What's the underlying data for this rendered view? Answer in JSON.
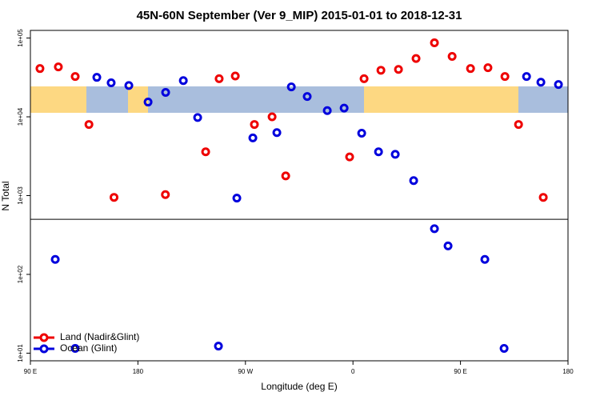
{
  "chart_data": {
    "type": "scatter",
    "title": "45N-60N September (Ver 9_MIP)   2015-01-01 to 2018-12-31",
    "x_label": "Longitude (deg E)",
    "y_label": "N Total",
    "xlim": [
      -270,
      180
    ],
    "xticks": [
      {
        "value": -270,
        "label": "90 E"
      },
      {
        "value": -180,
        "label": "180"
      },
      {
        "value": -90,
        "label": "90 W"
      },
      0,
      {
        "value": 90,
        "label": "90 E"
      },
      180
    ],
    "ylim": [
      8,
      125000
    ],
    "log_y": true,
    "yticks": [
      {
        "value": 10,
        "label": "1e+01"
      },
      {
        "value": 100,
        "label": "1e+02"
      },
      {
        "value": 1000,
        "label": "1e+03"
      },
      {
        "value": 10000,
        "label": "1e+04"
      },
      {
        "value": 100000,
        "label": "1e+05"
      }
    ],
    "reference_line": 500,
    "legend": "bottom-left",
    "series": [
      {
        "name": "Land (Nadir&Glint)",
        "color": "#ee0000",
        "x": [
          -262,
          -246.6,
          -232.5,
          -221,
          -200,
          -157,
          -123.3,
          -112,
          -98.5,
          -82.5,
          -67.7,
          -56.3,
          -2.8,
          9.3,
          23.4,
          38.1,
          52.8,
          68.2,
          83,
          98.4,
          113,
          127.2,
          138.6,
          159.3
        ],
        "values": [
          41000,
          43000,
          32500,
          8000,
          950,
          1030,
          3600,
          30500,
          33000,
          8000,
          10000,
          1780,
          3100,
          30500,
          39000,
          40000,
          55000,
          87000,
          58500,
          41000,
          42000,
          32500,
          8000,
          950
        ]
      },
      {
        "name": "Ocean (Glint)",
        "color": "#0000dd",
        "x": [
          -249.2,
          -232.5,
          -214.4,
          -202.4,
          -187.6,
          -171.5,
          -156.8,
          -142,
          -130,
          -112.6,
          -97.2,
          -83.8,
          -63.7,
          -51.6,
          -38.3,
          -21.5,
          -7.4,
          7.3,
          21.4,
          35.4,
          50.8,
          68.2,
          79.6,
          110.4,
          126.5,
          145.3,
          157.3,
          172
        ],
        "values": [
          155,
          11.5,
          31700,
          27000,
          25000,
          15400,
          20400,
          28800,
          9800,
          12.3,
          930,
          5400,
          6300,
          24000,
          18100,
          12000,
          12900,
          6200,
          3600,
          3340,
          1550,
          380,
          230,
          155,
          11.5,
          32500,
          27500,
          25700
        ]
      }
    ]
  }
}
